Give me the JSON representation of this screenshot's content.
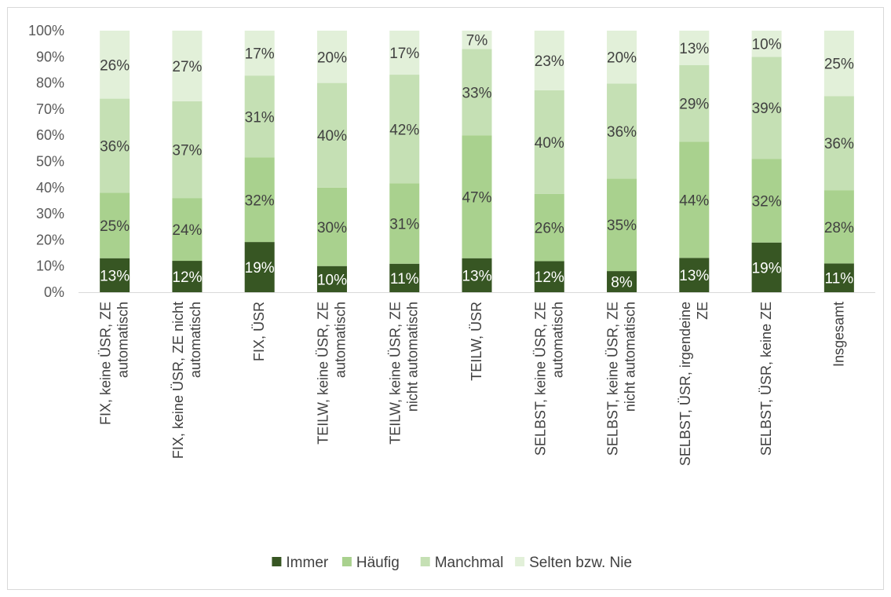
{
  "chart_data": {
    "type": "bar",
    "stacked": true,
    "percent": true,
    "title": "",
    "xlabel": "",
    "ylabel": "",
    "ylim": [
      0,
      100
    ],
    "yticks": [
      "0%",
      "10%",
      "20%",
      "30%",
      "40%",
      "50%",
      "60%",
      "70%",
      "80%",
      "90%",
      "100%"
    ],
    "grid": false,
    "legend_position": "bottom",
    "categories": [
      "FIX, keine ÜSR, ZE automatisch",
      "FIX, keine ÜSR, ZE nicht automatisch",
      "FIX, ÜSR",
      "TEILW, keine ÜSR, ZE automatisch",
      "TEILW, keine ÜSR, ZE nicht automatisch",
      "TEILW, ÜSR",
      "SELBST, keine ÜSR, ZE automatisch",
      "SELBST, keine ÜSR, ZE nicht automatisch",
      "SELBST, ÜSR, irgendeine ZE",
      "SELBST, ÜSR, keine ZE",
      "Insgesamt"
    ],
    "series": [
      {
        "name": "Immer",
        "color": "#375623",
        "values": [
          13,
          12,
          19,
          10,
          11,
          13,
          12,
          8,
          13,
          19,
          11
        ],
        "labels": [
          "13%",
          "12%",
          "19%",
          "10%",
          "11%",
          "13%",
          "12%",
          "8%",
          "13%",
          "19%",
          "11%"
        ]
      },
      {
        "name": "Häufig",
        "color": "#a9d18e",
        "values": [
          25,
          24,
          32,
          30,
          31,
          47,
          26,
          35,
          44,
          32,
          28
        ],
        "labels": [
          "25%",
          "24%",
          "32%",
          "30%",
          "31%",
          "47%",
          "26%",
          "35%",
          "44%",
          "32%",
          "28%"
        ]
      },
      {
        "name": "Manchmal",
        "color": "#c5e0b4",
        "values": [
          36,
          37,
          31,
          40,
          42,
          33,
          40,
          36,
          29,
          39,
          36
        ],
        "labels": [
          "36%",
          "37%",
          "31%",
          "40%",
          "42%",
          "33%",
          "40%",
          "36%",
          "29%",
          "39%",
          "36%"
        ]
      },
      {
        "name": "Selten bzw. Nie",
        "color": "#e2f0d9",
        "values": [
          26,
          27,
          17,
          20,
          17,
          7,
          23,
          20,
          13,
          10,
          25
        ],
        "labels": [
          "26%",
          "27%",
          "17%",
          "20%",
          "17%",
          "7%",
          "23%",
          "20%",
          "13%",
          "10%",
          "25%"
        ]
      }
    ]
  }
}
